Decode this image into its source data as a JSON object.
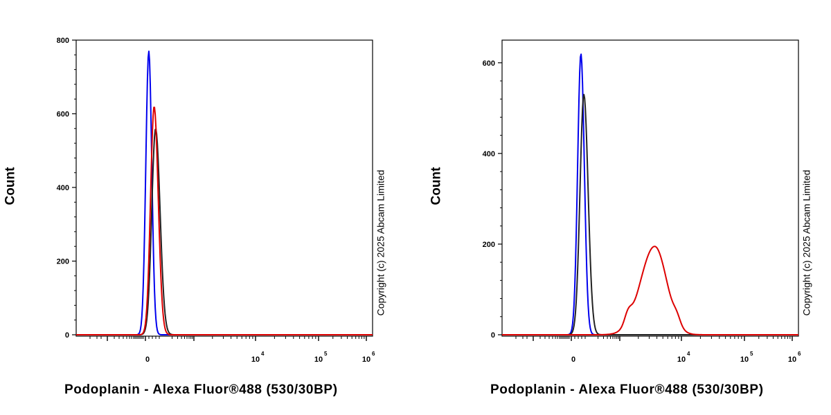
{
  "chart_data": [
    {
      "type": "line",
      "xlabel": "Podoplanin - Alexa Fluor®488 (530/30BP)",
      "ylabel": "Count",
      "copyright": "Copyright (c) 2025 Abcam Limited",
      "ylim": [
        0,
        800
      ],
      "y_ticks": [
        0,
        200,
        400,
        600,
        800
      ],
      "x_tick_labels": [
        {
          "base": "0",
          "exp": ""
        },
        {
          "base": "10",
          "exp": "4"
        },
        {
          "base": "10",
          "exp": "5"
        },
        {
          "base": "10",
          "exp": "6"
        }
      ],
      "series": [
        {
          "color": "#0000ee",
          "peak_x": 0.245,
          "peak_y": 770,
          "width": 0.01,
          "skew": 1.0
        },
        {
          "color": "#222222",
          "peak_x": 0.268,
          "peak_y": 560,
          "width": 0.013,
          "skew": 1.15
        },
        {
          "color": "#dd0000",
          "peak_x": 0.263,
          "peak_y": 620,
          "width": 0.012,
          "skew": 1.15
        }
      ]
    },
    {
      "type": "line",
      "xlabel": "Podoplanin - Alexa Fluor®488 (530/30BP)",
      "ylabel": "Count",
      "copyright": "Copyright (c) 2025 Abcam Limited",
      "ylim": [
        0,
        650
      ],
      "y_ticks": [
        0,
        200,
        400,
        600
      ],
      "x_tick_labels": [
        {
          "base": "0",
          "exp": ""
        },
        {
          "base": "10",
          "exp": "4"
        },
        {
          "base": "10",
          "exp": "5"
        },
        {
          "base": "10",
          "exp": "6"
        }
      ],
      "series": [
        {
          "color": "#0000ee",
          "peak_x": 0.266,
          "peak_y": 620,
          "width": 0.011,
          "skew": 1.05
        },
        {
          "color": "#222222",
          "peak_x": 0.276,
          "peak_y": 530,
          "width": 0.013,
          "skew": 1.1
        },
        {
          "color": "#dd0000",
          "peak_x": 0.515,
          "peak_y": 195,
          "width": 0.048,
          "skew": 0.85
        }
      ]
    }
  ]
}
